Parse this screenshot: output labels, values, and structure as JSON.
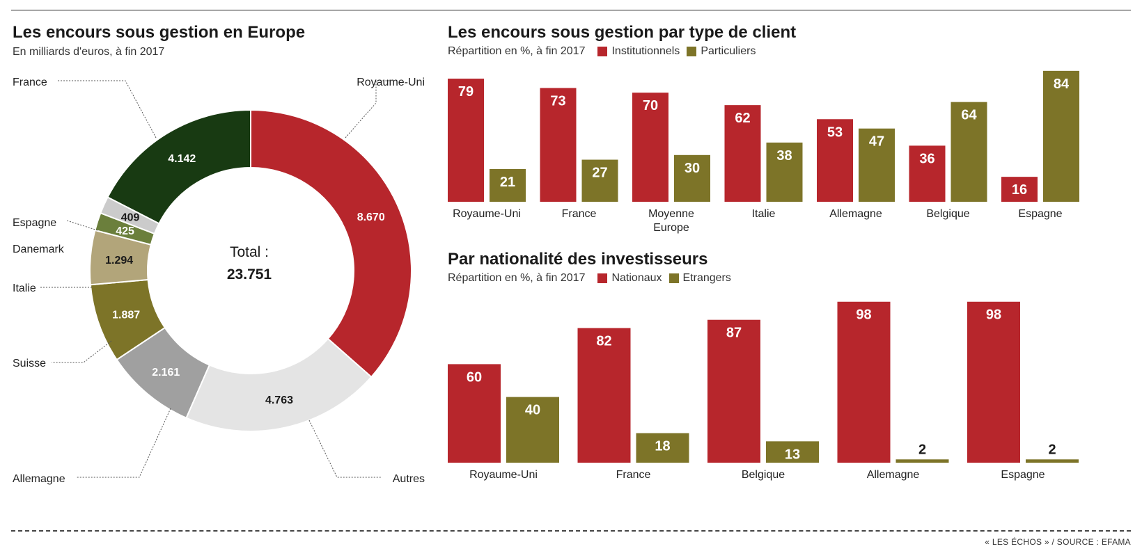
{
  "source": "« LES ÉCHOS » / SOURCE : EFAMA",
  "chart_data": [
    {
      "type": "pie",
      "title": "Les encours sous gestion en Europe",
      "subtitle": "En milliards d'euros, à fin 2017",
      "center_label": "Total :",
      "center_value": "23.751",
      "total": 23751,
      "slices": [
        {
          "name": "Royaume-Uni",
          "value": 8670,
          "label": "8.670",
          "color": "#b7262c"
        },
        {
          "name": "Autres",
          "value": 4763,
          "label": "4.763",
          "color": "#e4e4e4"
        },
        {
          "name": "Allemagne",
          "value": 2161,
          "label": "2.161",
          "color": "#a0a0a0"
        },
        {
          "name": "Suisse",
          "value": 1887,
          "label": "1.887",
          "color": "#7d7428"
        },
        {
          "name": "Italie",
          "value": 1294,
          "label": "1.294",
          "color": "#b2a57a"
        },
        {
          "name": "Danemark",
          "value": 425,
          "label": "425",
          "color": "#6b7f3c"
        },
        {
          "name": "Espagne",
          "value": 409,
          "label": "409",
          "color": "#cbcbcb"
        },
        {
          "name": "France",
          "value": 4142,
          "label": "4.142",
          "color": "#183a12"
        }
      ]
    },
    {
      "type": "bar",
      "title": "Les encours sous gestion par type de client",
      "subtitle": "Répartition en %, à fin 2017",
      "categories": [
        "Royaume-Uni",
        "France",
        "Moyenne Europe",
        "Italie",
        "Allemagne",
        "Belgique",
        "Espagne"
      ],
      "series": [
        {
          "name": "Institutionnels",
          "color": "#b7262c",
          "values": [
            79,
            73,
            70,
            62,
            53,
            36,
            16
          ]
        },
        {
          "name": "Particuliers",
          "color": "#7d7428",
          "values": [
            21,
            27,
            30,
            38,
            47,
            64,
            84
          ]
        }
      ]
    },
    {
      "type": "bar",
      "title": "Par nationalité des investisseurs",
      "subtitle": "Répartition en %, à fin 2017",
      "categories": [
        "Royaume-Uni",
        "France",
        "Belgique",
        "Allemagne",
        "Espagne"
      ],
      "series": [
        {
          "name": "Nationaux",
          "color": "#b7262c",
          "values": [
            60,
            82,
            87,
            98,
            98
          ]
        },
        {
          "name": "Etrangers",
          "color": "#7d7428",
          "values": [
            40,
            18,
            13,
            2,
            2
          ]
        }
      ]
    }
  ]
}
